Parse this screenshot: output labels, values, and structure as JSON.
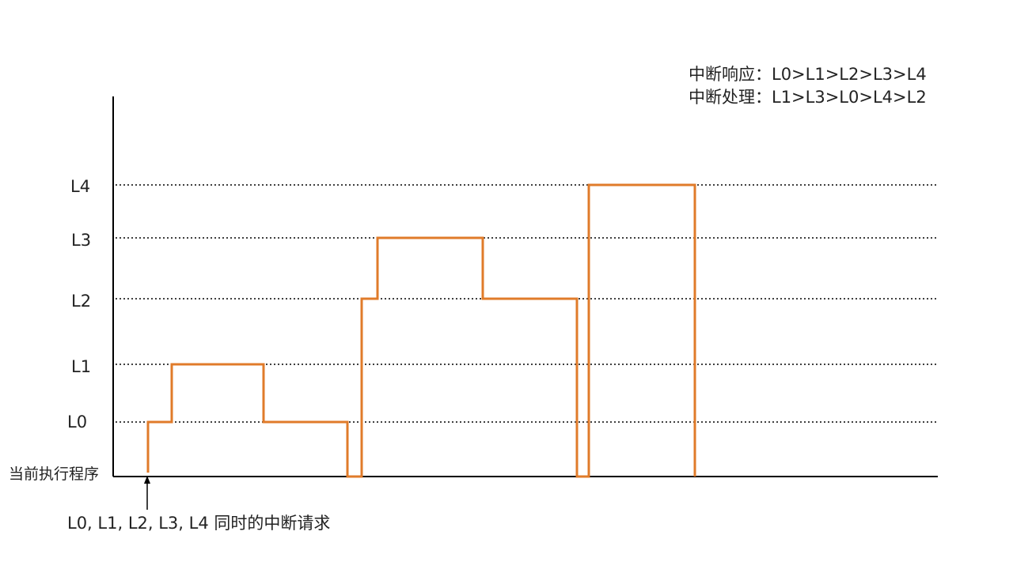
{
  "legend": {
    "response": "中断响应：L0>L1>L2>L3>L4",
    "handling": "中断处理：L1>L3>L0>L4>L2"
  },
  "levels": [
    {
      "label": "L4"
    },
    {
      "label": "L3"
    },
    {
      "label": "L2"
    },
    {
      "label": "L1"
    },
    {
      "label": "L0"
    }
  ],
  "baseline_label": "当前执行程序",
  "request_caption": "L0, L1, L2, L3, L4 同时的中断请求",
  "colors": {
    "trace": "#E07B2A",
    "axis": "#000000",
    "gridline": "#000000"
  },
  "trace_sequence": [
    "当前执行程序",
    "L0",
    "L1",
    "L0",
    "当前执行程序",
    "L2",
    "L3",
    "L2",
    "当前执行程序",
    "L4",
    "当前执行程序"
  ]
}
